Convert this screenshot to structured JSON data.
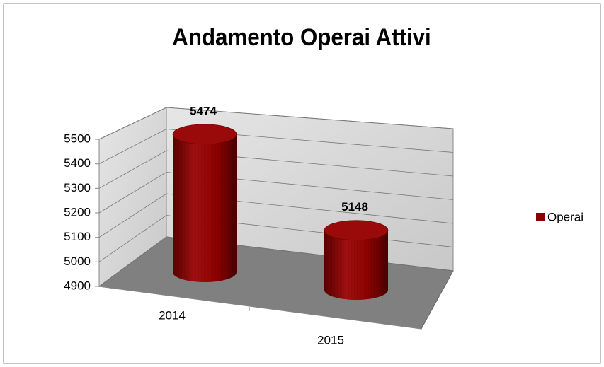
{
  "chart_data": {
    "type": "bar3d-cylinder",
    "title": "Andamento Operai Attivi",
    "categories": [
      "2014",
      "2015"
    ],
    "series": [
      {
        "name": "Operai",
        "color": "#8b0000",
        "values": [
          5474,
          5148
        ]
      }
    ],
    "ylim": [
      4900,
      5500
    ],
    "yticks": [
      4900,
      5000,
      5100,
      5200,
      5300,
      5400,
      5500
    ],
    "grid": true,
    "legend": "right"
  }
}
